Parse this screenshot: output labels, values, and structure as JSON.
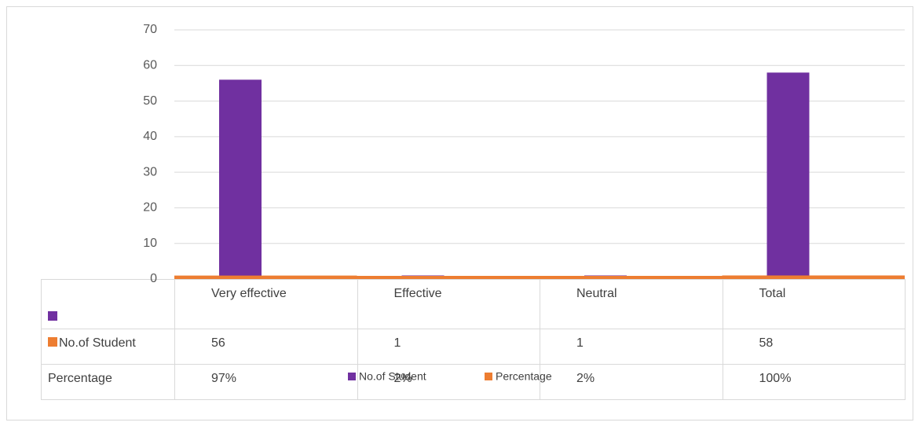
{
  "chart_data": {
    "type": "bar",
    "categories": [
      "Very effective",
      "Effective",
      "Neutral",
      "Total"
    ],
    "series": [
      {
        "name": "No.of Student",
        "color": "#7030a0",
        "values": [
          56,
          1,
          1,
          58
        ]
      },
      {
        "name": "Percentage",
        "color": "#ed7d31",
        "values": [
          0.97,
          0.02,
          0.02,
          1
        ],
        "value_labels": [
          "97%",
          "2%",
          "2%",
          "100%"
        ]
      }
    ],
    "ylim": [
      0,
      70
    ],
    "yticks": [
      0,
      10,
      20,
      30,
      40,
      50,
      60,
      70
    ],
    "grid": true
  }
}
